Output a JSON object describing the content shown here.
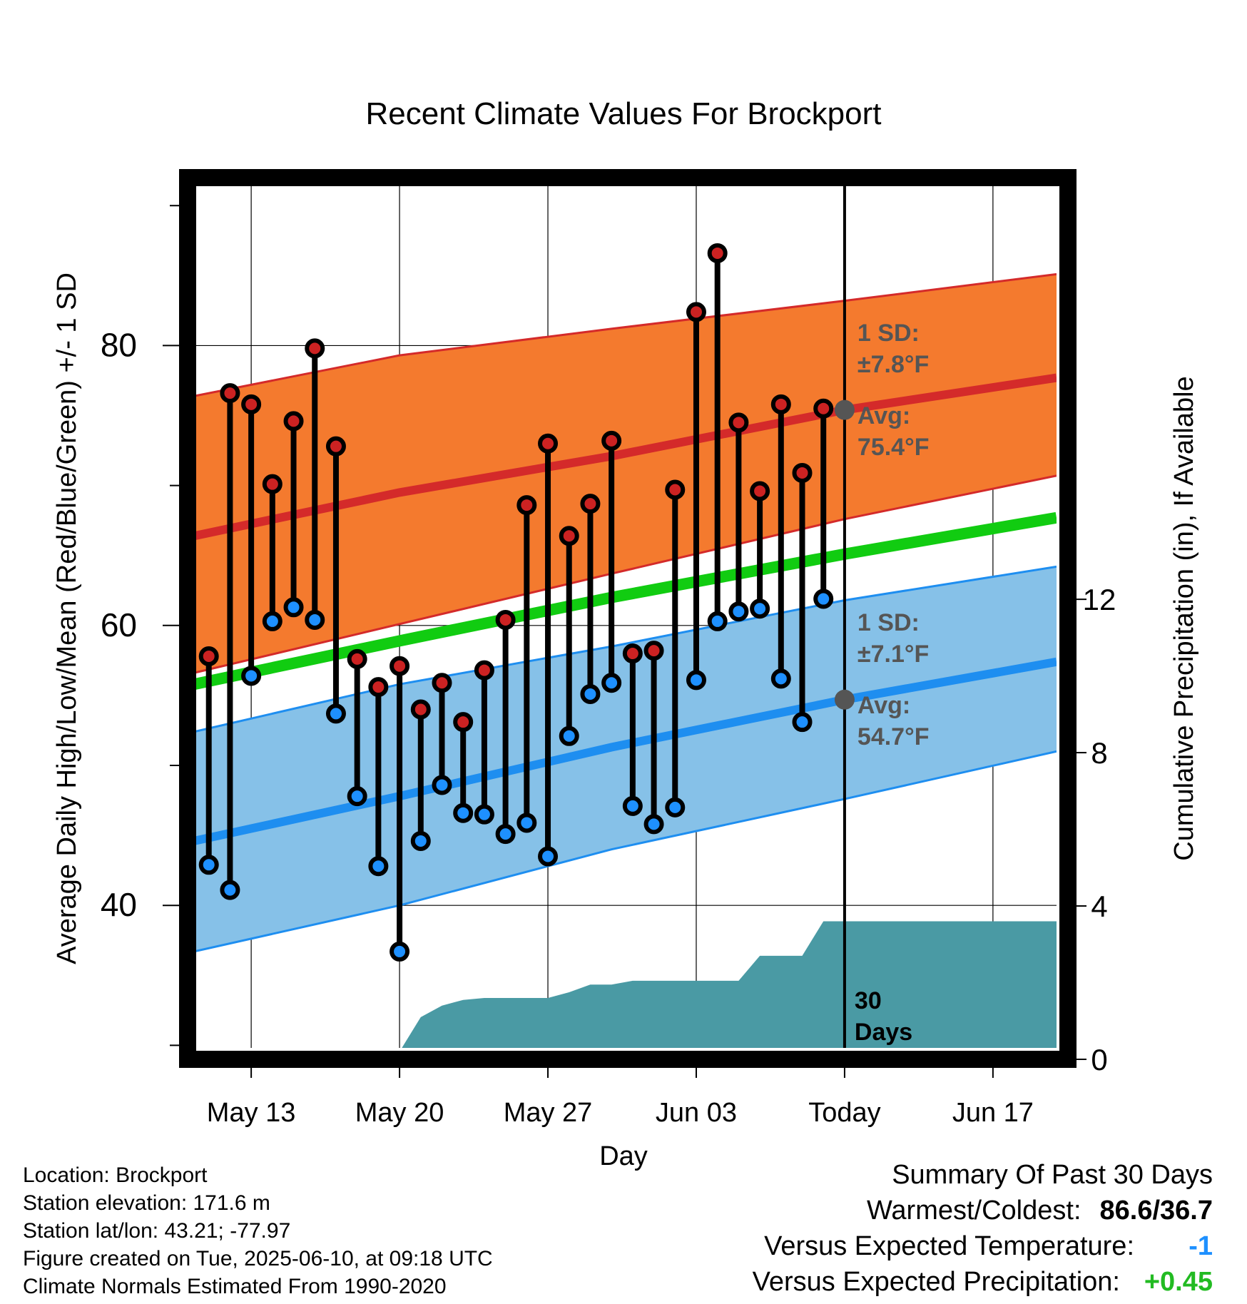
{
  "chart_data": {
    "type": "line",
    "title": "Recent Climate Values For Brockport",
    "xlabel": "Day",
    "ylabel": "Average Daily High/Low/Mean (Red/Blue/Green) +/- 1 SD",
    "y2label": "Cumulative Precipitation (in), If Available",
    "x_day_range": [
      "May 10",
      "Jun 20"
    ],
    "ylim": [
      29,
      92
    ],
    "y2lim": [
      0,
      23
    ],
    "y_ticks": [
      40,
      60,
      80
    ],
    "y2_ticks": [
      0,
      4,
      8,
      12
    ],
    "x_ticks": [
      {
        "date": "May 13",
        "label": "May 13"
      },
      {
        "date": "May 20",
        "label": "May 20"
      },
      {
        "date": "May 27",
        "label": "May 27"
      },
      {
        "date": "Jun 03",
        "label": "Jun 03"
      },
      {
        "date": "Jun 10",
        "label": "Today"
      },
      {
        "date": "Jun 17",
        "label": "Jun 17"
      }
    ],
    "today": "Jun 10",
    "normals": {
      "dates": [
        "May 10",
        "May 20",
        "May 30",
        "Jun 10",
        "Jun 20"
      ],
      "high_mean": [
        66.3,
        69.5,
        72.1,
        75.4,
        77.7
      ],
      "high_upper": [
        76.3,
        79.3,
        81.2,
        83.2,
        85.1
      ],
      "high_lower": [
        56.5,
        60.1,
        63.7,
        67.6,
        70.7
      ],
      "mean": [
        55.7,
        58.9,
        62.0,
        65.1,
        67.7
      ],
      "low_mean": [
        44.5,
        47.8,
        51.3,
        54.7,
        57.4
      ],
      "low_upper": [
        52.3,
        55.8,
        58.5,
        61.8,
        64.2
      ],
      "low_lower": [
        36.6,
        40.0,
        44.0,
        47.6,
        51.0
      ]
    },
    "daily": {
      "dates": [
        "May 11",
        "May 12",
        "May 13",
        "May 14",
        "May 15",
        "May 16",
        "May 17",
        "May 18",
        "May 19",
        "May 20",
        "May 21",
        "May 22",
        "May 23",
        "May 24",
        "May 25",
        "May 26",
        "May 27",
        "May 28",
        "May 29",
        "May 30",
        "May 31",
        "Jun 01",
        "Jun 02",
        "Jun 03",
        "Jun 04",
        "Jun 05",
        "Jun 06",
        "Jun 07",
        "Jun 08",
        "Jun 09"
      ],
      "highs": [
        57.8,
        76.6,
        75.8,
        70.1,
        74.6,
        79.8,
        72.8,
        57.6,
        55.6,
        57.1,
        54.0,
        55.9,
        53.1,
        56.8,
        60.4,
        68.6,
        73.0,
        66.4,
        68.7,
        73.2,
        58.0,
        58.2,
        69.7,
        82.4,
        86.6,
        74.5,
        69.6,
        75.8,
        70.9,
        75.5
      ],
      "lows": [
        42.9,
        41.1,
        56.4,
        60.3,
        61.3,
        60.4,
        53.7,
        47.8,
        42.8,
        36.7,
        44.6,
        48.6,
        46.6,
        46.5,
        45.1,
        45.9,
        43.5,
        52.1,
        55.1,
        55.9,
        47.1,
        45.8,
        47.0,
        56.1,
        60.3,
        61.0,
        61.2,
        56.2,
        53.1,
        61.9
      ]
    },
    "precip_cumulative": {
      "dates": [
        "May 10",
        "May 14",
        "May 16",
        "May 17",
        "May 18",
        "May 19",
        "May 20",
        "May 21",
        "May 22",
        "May 23",
        "May 24",
        "May 25",
        "May 26",
        "May 27",
        "May 28",
        "May 29",
        "May 30",
        "May 31",
        "Jun 01",
        "Jun 02",
        "Jun 03",
        "Jun 04",
        "Jun 05",
        "Jun 06",
        "Jun 07",
        "Jun 08",
        "Jun 09",
        "Jun 10",
        "Jun 20"
      ],
      "values": [
        0.0,
        0.0,
        0.0,
        0.2,
        0.2,
        0.2,
        0.2,
        1.1,
        1.4,
        1.55,
        1.6,
        1.6,
        1.6,
        1.6,
        1.75,
        1.95,
        1.95,
        2.05,
        2.05,
        2.05,
        2.05,
        2.05,
        2.05,
        2.7,
        2.7,
        2.7,
        3.6,
        3.6,
        3.6
      ]
    },
    "annotations": {
      "high_sd": "1 SD:",
      "high_sd_value": "±7.8°F",
      "high_avg": "Avg:",
      "high_avg_value": "75.4°F",
      "low_sd": "1 SD:",
      "low_sd_value": "±7.1°F",
      "low_avg": "Avg:",
      "low_avg_value": "54.7°F",
      "window_days": "30",
      "window_unit": "Days"
    },
    "colors": {
      "high_band": "#f47a2e",
      "high_line": "#d42a2a",
      "mean_line": "#11cc11",
      "low_band": "#86c1e8",
      "low_line": "#1e8ef0",
      "precip": "#4a9aa4",
      "high_dot": "#cc2222",
      "low_dot": "#1e90ff",
      "annotation": "#555555"
    },
    "grid": true
  },
  "footer": {
    "location": "Location: Brockport",
    "elevation": "Station elevation: 171.6 m",
    "latlon": "Station lat/lon: 43.21; -77.97",
    "created": "Figure created on Tue, 2025-06-10, at 09:18 UTC",
    "normals": "Climate Normals Estimated From 1990-2020"
  },
  "summary": {
    "title": "Summary Of Past 30 Days",
    "warmest_label": "Warmest/Coldest:",
    "warmest_value": "86.6/36.7",
    "temp_label": "Versus Expected Temperature:",
    "temp_value": "-1",
    "temp_color": "#1e90ff",
    "precip_label": "Versus Expected Precipitation:",
    "precip_value": "+0.45",
    "precip_color": "#22bb22"
  }
}
